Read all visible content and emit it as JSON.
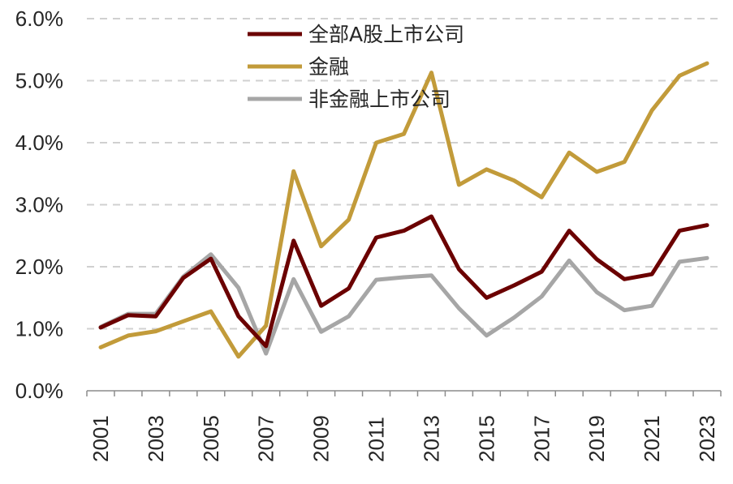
{
  "chart_data": {
    "type": "line",
    "title": "",
    "xlabel": "",
    "ylabel": "",
    "x": [
      "2001",
      "2002",
      "2003",
      "2004",
      "2005",
      "2006",
      "2007",
      "2008",
      "2009",
      "2010",
      "2011",
      "2012",
      "2013",
      "2014",
      "2015",
      "2016",
      "2017",
      "2018",
      "2019",
      "2020",
      "2021",
      "2022",
      "2023"
    ],
    "x_tick_labels": [
      "2001",
      "2003",
      "2005",
      "2007",
      "2009",
      "2011",
      "2013",
      "2015",
      "2017",
      "2019",
      "2021",
      "2023"
    ],
    "y_tick_labels": [
      "0.0%",
      "1.0%",
      "2.0%",
      "3.0%",
      "4.0%",
      "5.0%",
      "6.0%"
    ],
    "ylim": [
      0,
      6
    ],
    "grid": "horizontal-dashed",
    "legend_position": "top-center",
    "series": [
      {
        "name": "全部A股上市公司",
        "color": "#6b0000",
        "values": [
          1.02,
          1.22,
          1.2,
          1.82,
          2.13,
          1.2,
          0.72,
          2.42,
          1.37,
          1.65,
          2.47,
          2.58,
          2.81,
          1.96,
          1.5,
          1.7,
          1.92,
          2.58,
          2.12,
          1.8,
          1.88,
          2.58,
          2.67
        ]
      },
      {
        "name": "金融",
        "color": "#c29b3a",
        "values": [
          0.7,
          0.89,
          0.96,
          1.12,
          1.28,
          0.55,
          1.05,
          3.54,
          2.33,
          2.76,
          4.0,
          4.14,
          5.13,
          3.32,
          3.57,
          3.39,
          3.12,
          3.84,
          3.53,
          3.69,
          4.52,
          5.08,
          5.28
        ]
      },
      {
        "name": "非金融上市公司",
        "color": "#a6a6a6",
        "values": [
          1.03,
          1.24,
          1.24,
          1.84,
          2.2,
          1.66,
          0.6,
          1.8,
          0.95,
          1.2,
          1.79,
          1.83,
          1.86,
          1.33,
          0.89,
          1.18,
          1.52,
          2.1,
          1.59,
          1.3,
          1.37,
          2.08,
          2.14
        ]
      }
    ]
  }
}
